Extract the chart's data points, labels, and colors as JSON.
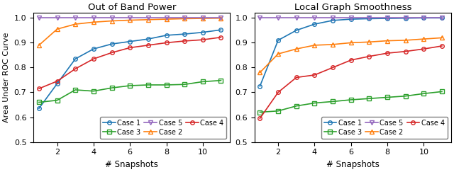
{
  "x": [
    1,
    2,
    3,
    4,
    5,
    6,
    7,
    8,
    9,
    10,
    11
  ],
  "plot1": {
    "title": "Out of Band Power",
    "case1": [
      0.635,
      0.735,
      0.835,
      0.875,
      0.895,
      0.905,
      0.915,
      0.93,
      0.935,
      0.942,
      0.952
    ],
    "case2": [
      0.89,
      0.955,
      0.975,
      0.983,
      0.988,
      0.991,
      0.993,
      0.995,
      0.997,
      0.998,
      0.999
    ],
    "case3": [
      0.66,
      0.668,
      0.71,
      0.705,
      0.718,
      0.727,
      0.73,
      0.73,
      0.732,
      0.743,
      0.748
    ],
    "case4": [
      0.715,
      0.745,
      0.795,
      0.835,
      0.86,
      0.88,
      0.89,
      0.9,
      0.907,
      0.912,
      0.922
    ],
    "case5": [
      1.0,
      1.0,
      1.0,
      1.0,
      1.0,
      1.0,
      1.0,
      1.0,
      1.0,
      1.0,
      1.0
    ]
  },
  "plot2": {
    "title": "Local Graph Smoothness",
    "case1": [
      0.725,
      0.91,
      0.95,
      0.975,
      0.99,
      0.995,
      0.997,
      0.998,
      0.999,
      1.0,
      1.0
    ],
    "case2": [
      0.78,
      0.855,
      0.875,
      0.89,
      0.893,
      0.9,
      0.903,
      0.908,
      0.91,
      0.915,
      0.92
    ],
    "case3": [
      0.62,
      0.625,
      0.645,
      0.657,
      0.663,
      0.67,
      0.675,
      0.68,
      0.685,
      0.695,
      0.703
    ],
    "case4": [
      0.595,
      0.7,
      0.76,
      0.77,
      0.8,
      0.83,
      0.845,
      0.858,
      0.865,
      0.875,
      0.887
    ],
    "case5": [
      1.0,
      1.0,
      1.0,
      1.0,
      1.0,
      1.0,
      1.0,
      1.0,
      1.0,
      1.0,
      1.0
    ]
  },
  "colors": {
    "case1": "#1f77b4",
    "case2": "#ff7f0e",
    "case3": "#2ca02c",
    "case4": "#d62728",
    "case5": "#9467bd"
  },
  "markers": {
    "case1": "o",
    "case2": "^",
    "case3": "s",
    "case4": "o",
    "case5": "v"
  },
  "legend_order": [
    0,
    2,
    4,
    1,
    3
  ],
  "legend_labels": [
    "Case 1",
    "Case 2",
    "Case 3",
    "Case 4",
    "Case 5"
  ],
  "ylabel": "Area Under ROC Curve",
  "xlabel": "# Snapshots",
  "ylim": [
    0.5,
    1.02
  ],
  "yticks": [
    0.5,
    0.6,
    0.7,
    0.8,
    0.9,
    1.0
  ],
  "xticks": [
    2,
    4,
    6,
    8,
    10
  ],
  "xlim": [
    0.7,
    11.5
  ]
}
